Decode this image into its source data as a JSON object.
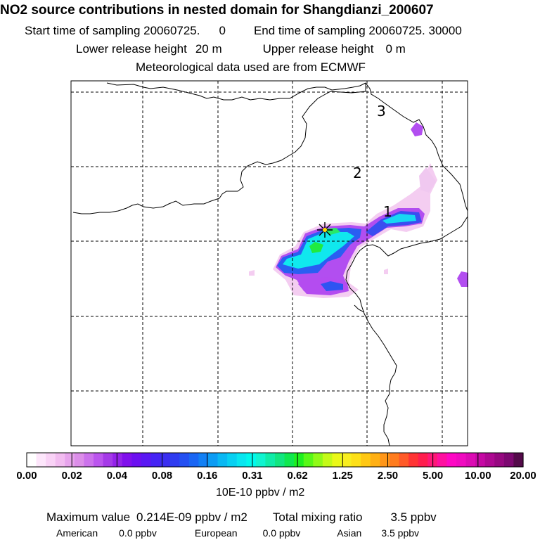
{
  "header": {
    "title": "NO2 source contributions in nested domain for Shangdianzi_200607",
    "start_label": "Start time of sampling 20060725.",
    "start_value": "0",
    "end_label": "End time of sampling 20060725. 30000",
    "lower_label": "Lower release height",
    "lower_value": "20 m",
    "upper_label": "Upper release height",
    "upper_value": "0 m",
    "met_line": "Meteorological data used are from ECMWF"
  },
  "map": {
    "contour_labels": [
      "3",
      "2",
      "1"
    ],
    "station_marker": "station-star-icon"
  },
  "colorbar": {
    "tick_labels": [
      "0.00",
      "0.02",
      "0.04",
      "0.08",
      "0.16",
      "0.31",
      "0.62",
      "1.25",
      "2.50",
      "5.00",
      "10.00",
      "20.00"
    ],
    "colors": [
      "#ffffff",
      "#fde6fb",
      "#f9d2f6",
      "#f2bcf0",
      "#e7a4ec",
      "#dc8ee9",
      "#cc72ec",
      "#bb55ee",
      "#a53ae8",
      "#9422ea",
      "#8010ec",
      "#6c10f0",
      "#5a18f3",
      "#4624f5",
      "#3a2ef0",
      "#2f3cf0",
      "#2450f2",
      "#1a66f4",
      "#1280f5",
      "#0c9cf4",
      "#0ab8f3",
      "#08d0f2",
      "#08e6f0",
      "#00f8ec",
      "#10f4d0",
      "#10eca8",
      "#12e680",
      "#10e850",
      "#1ef020",
      "#58f818",
      "#90fa18",
      "#c4fa18",
      "#eaf818",
      "#f8ee20",
      "#fde018",
      "#ffc814",
      "#ffb014",
      "#ff9618",
      "#ff7c1e",
      "#ff5a28",
      "#ff3434",
      "#ff1e4e",
      "#ff1878",
      "#ff10a0",
      "#fe08c4",
      "#f00ac0",
      "#dc0ab4",
      "#c608a4",
      "#ae0892",
      "#960880",
      "#7c0870",
      "#540a4a"
    ],
    "units": "10E-10 ppbv / m2"
  },
  "summary": {
    "max_label": "Maximum value",
    "max_value": "0.214E-09 ppbv / m2",
    "total_label": "Total mixing ratio",
    "total_value": "3.5 ppbv",
    "breakdown": [
      {
        "name": "American",
        "value": "0.0 ppbv"
      },
      {
        "name": "European",
        "value": "0.0 ppbv"
      },
      {
        "name": "Asian",
        "value": "3.5 ppbv"
      }
    ]
  }
}
